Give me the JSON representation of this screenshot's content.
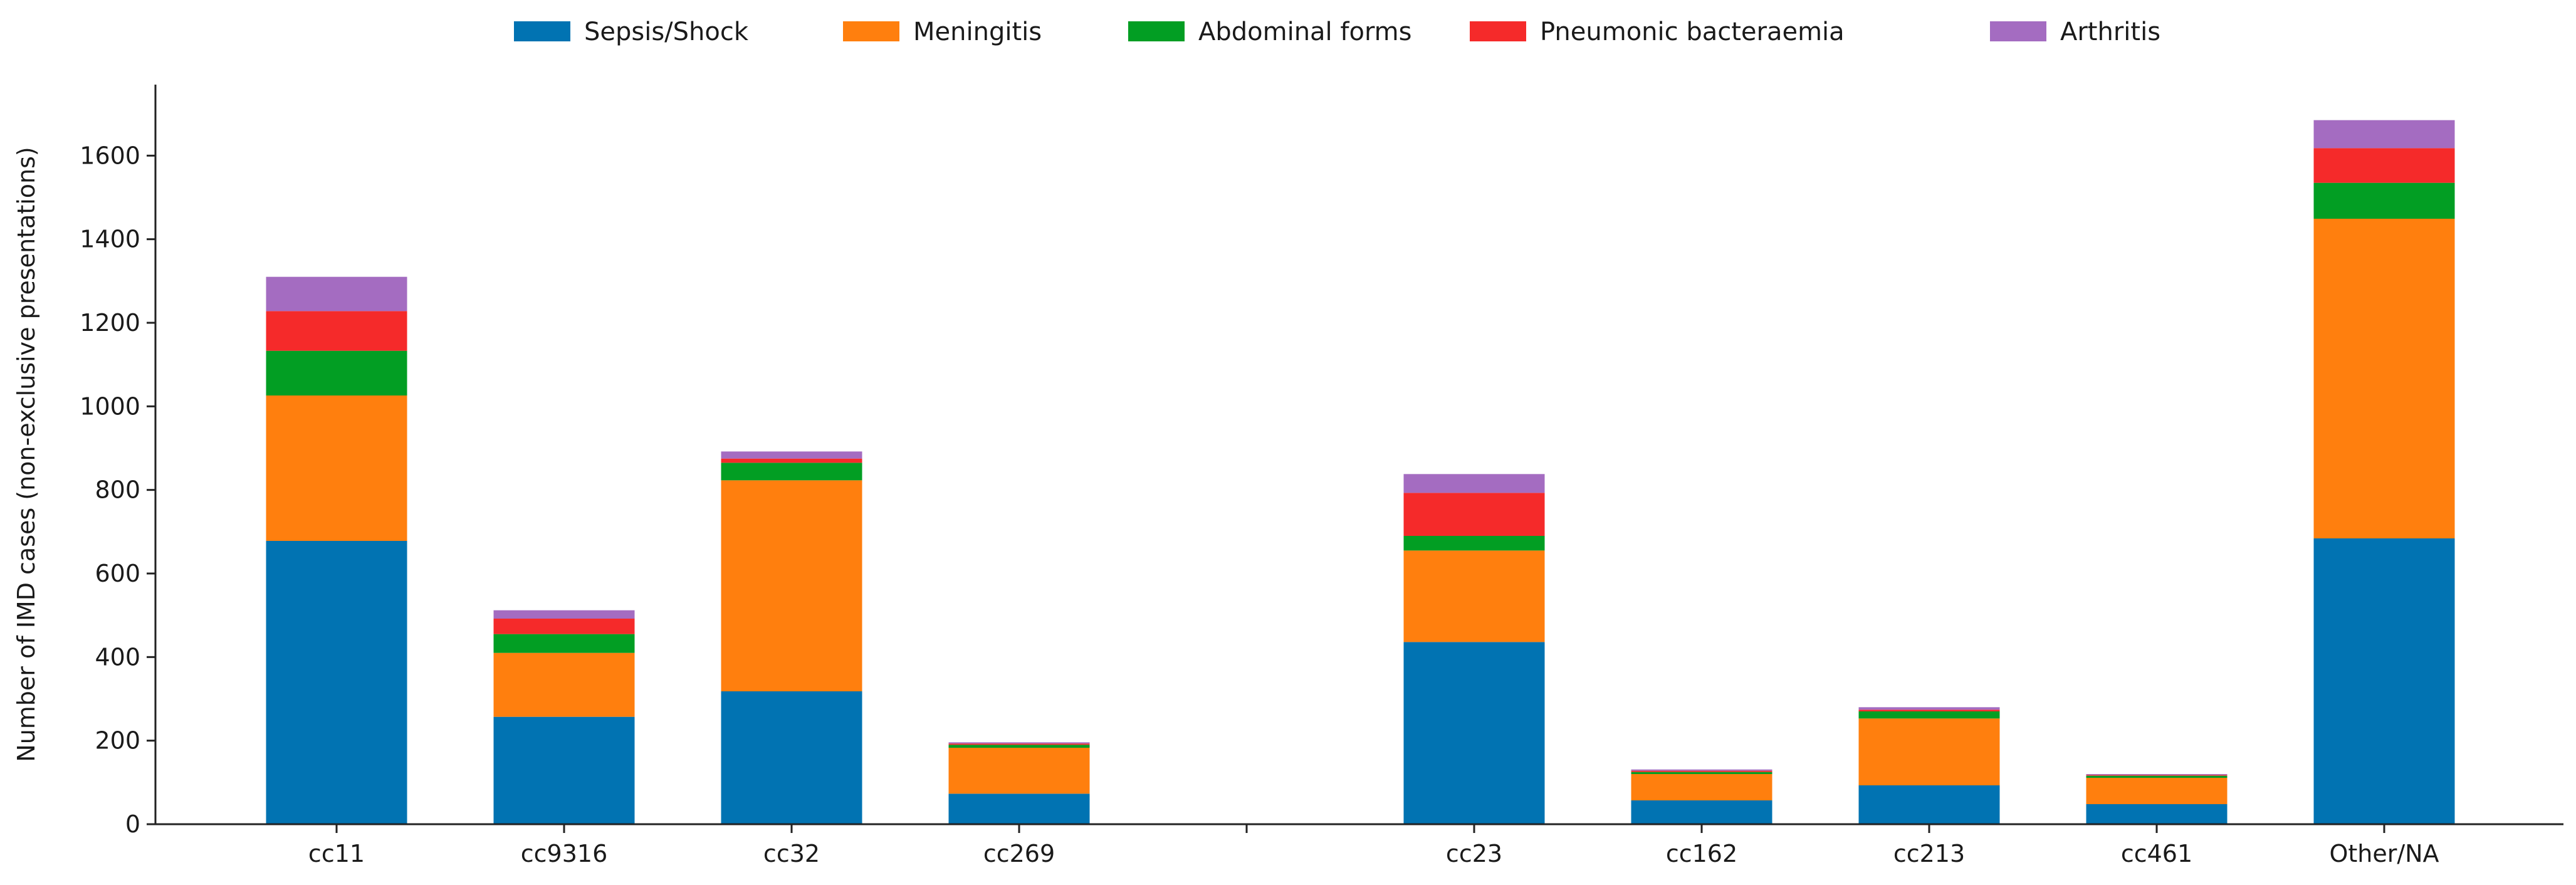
{
  "chart_data": {
    "type": "bar",
    "stacked": true,
    "title": "",
    "xlabel": "",
    "ylabel": "Number of IMD cases (non-exclusive presentations)",
    "ylim": [
      0,
      1770
    ],
    "yticks": [
      0,
      200,
      400,
      600,
      800,
      1000,
      1200,
      1400,
      1600
    ],
    "legend_position": "top-center",
    "categories": [
      "cc11",
      "cc9316",
      "cc32",
      "cc269",
      "",
      "cc23",
      "cc162",
      "cc213",
      "cc461",
      "Other/NA"
    ],
    "series": [
      {
        "name": "Sepsis/Shock",
        "color": "#0173b2",
        "values": [
          678,
          257,
          318,
          73,
          null,
          436,
          57,
          93,
          48,
          684
        ]
      },
      {
        "name": "Meningitis",
        "color": "#ff7f0e",
        "values": [
          348,
          153,
          505,
          110,
          null,
          219,
          63,
          160,
          63,
          765
        ]
      },
      {
        "name": "Abdominal forms",
        "color": "#029e23",
        "values": [
          107,
          45,
          42,
          7,
          null,
          35,
          5,
          17,
          5,
          86
        ]
      },
      {
        "name": "Pneumonic bacteraemia",
        "color": "#f52a2a",
        "values": [
          95,
          37,
          10,
          3,
          null,
          103,
          3,
          4,
          2,
          83
        ]
      },
      {
        "name": "Arthritis",
        "color": "#a46cc1",
        "values": [
          82,
          20,
          17,
          3,
          null,
          45,
          3,
          6,
          2,
          67
        ]
      }
    ]
  }
}
